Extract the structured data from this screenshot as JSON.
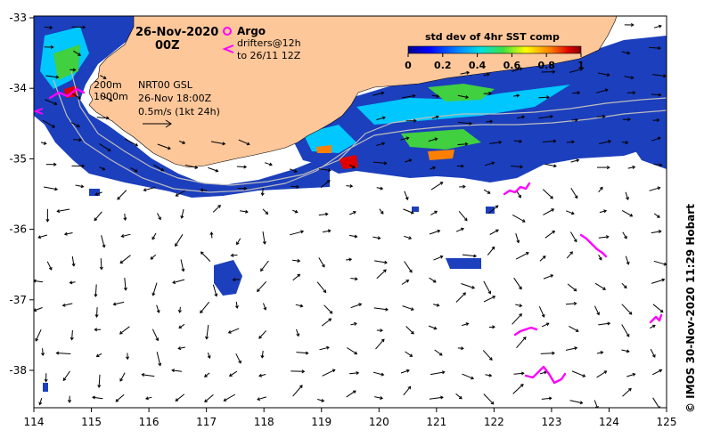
{
  "map": {
    "date": "26-Nov-2020",
    "time": "00Z",
    "legend_argo": "Argo",
    "legend_drifters_1": "drifters@12h",
    "legend_drifters_2": "to 26/11 12Z",
    "isobath_200": "200m",
    "isobath_1000": "1000m",
    "current_source": "NRT00 GSL",
    "current_time": "26-Nov 18:00Z",
    "scale_arrow": "0.5m/s (1kt 24h)",
    "colorbar_title": "std dev of 4hr SST comp",
    "colorbar_ticks": [
      "0",
      "0.2",
      "0.4",
      "0.6",
      "0.8",
      "1"
    ],
    "credit": "©  IMOS 30-Nov-2020 11:29 Hobart",
    "lon_ticks": [
      "114",
      "115",
      "116",
      "117",
      "118",
      "119",
      "120",
      "121",
      "122",
      "123",
      "124",
      "125"
    ],
    "lat_ticks": [
      "-33",
      "-34",
      "-35",
      "-36",
      "-37",
      "-38"
    ],
    "colors": {
      "land": "#fdc79a",
      "ocean": "#ffffff",
      "argo": "#ff00ff",
      "drifter": "#ff00ff",
      "sst_low": "#1c3fbd",
      "sst_mid": "#00c8ff",
      "sst_high": "#e00000"
    }
  }
}
